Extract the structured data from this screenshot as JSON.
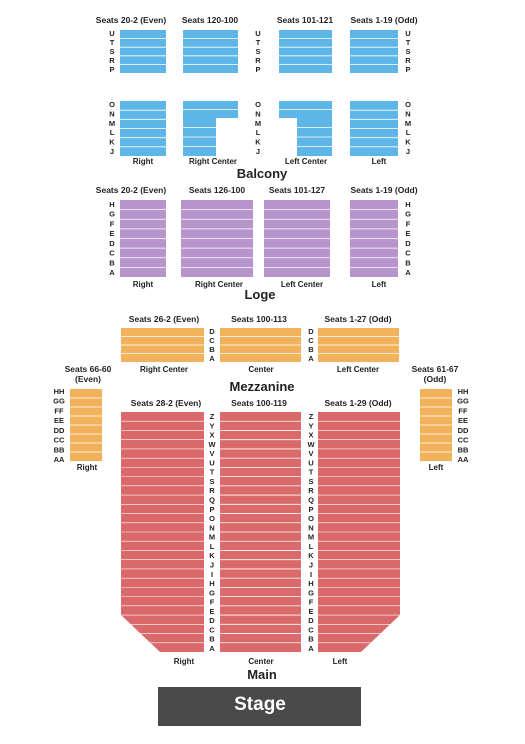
{
  "title": "",
  "colors": {
    "balcony": "#5DB5E8",
    "loge": "#B794CC",
    "mezzanine": "#F2B25B",
    "main": "#D9696A",
    "stage": "#4A4A4A",
    "row_line": "#ffffff"
  },
  "stage_label": "Stage",
  "levels": {
    "balcony": "Balcony",
    "loge": "Loge",
    "mezzanine": "Mezzanine",
    "main": "Main"
  },
  "balcony": {
    "upper_headers": [
      "Seats 20-2 (Even)",
      "Seats 120-100",
      "Seats 101-121",
      "Seats 1-19 (Odd)"
    ],
    "upper_rows": [
      "U",
      "T",
      "S",
      "R",
      "P"
    ],
    "lower_rows": [
      "O",
      "N",
      "M",
      "L",
      "K",
      "J"
    ],
    "section_labels": [
      "Right",
      "Right Center",
      "Left Center",
      "Left"
    ]
  },
  "loge": {
    "headers": [
      "Seats 20-2 (Even)",
      "Seats 126-100",
      "Seats 101-127",
      "Seats 1-19 (Odd)"
    ],
    "rows": [
      "H",
      "G",
      "F",
      "E",
      "D",
      "C",
      "B",
      "A"
    ],
    "section_labels": [
      "Right",
      "Right Center",
      "Left Center",
      "Left"
    ]
  },
  "mezzanine": {
    "headers": [
      "Seats 26-2 (Even)",
      "Seats 100-113",
      "Seats 1-27 (Odd)"
    ],
    "rows": [
      "D",
      "C",
      "B",
      "A"
    ],
    "section_labels": [
      "Right Center",
      "Center",
      "Left Center"
    ],
    "box_right": {
      "header_line1": "Seats 66-60",
      "header_line2": "(Even)",
      "rows": [
        "HH",
        "GG",
        "FF",
        "EE",
        "DD",
        "CC",
        "BB",
        "AA"
      ],
      "label": "Right"
    },
    "box_left": {
      "header_line1": "Seats 61-67",
      "header_line2": "(Odd)",
      "rows": [
        "HH",
        "GG",
        "FF",
        "EE",
        "DD",
        "CC",
        "BB",
        "AA"
      ],
      "label": "Left"
    }
  },
  "main": {
    "headers": [
      "Seats 28-2 (Even)",
      "Seats 100-119",
      "Seats 1-29 (Odd)"
    ],
    "rows": [
      "Z",
      "Y",
      "X",
      "W",
      "V",
      "U",
      "T",
      "S",
      "R",
      "Q",
      "P",
      "O",
      "N",
      "M",
      "L",
      "K",
      "J",
      "I",
      "H",
      "G",
      "F",
      "E",
      "D",
      "C",
      "B",
      "A"
    ],
    "section_labels": [
      "Right",
      "Center",
      "Left"
    ]
  }
}
